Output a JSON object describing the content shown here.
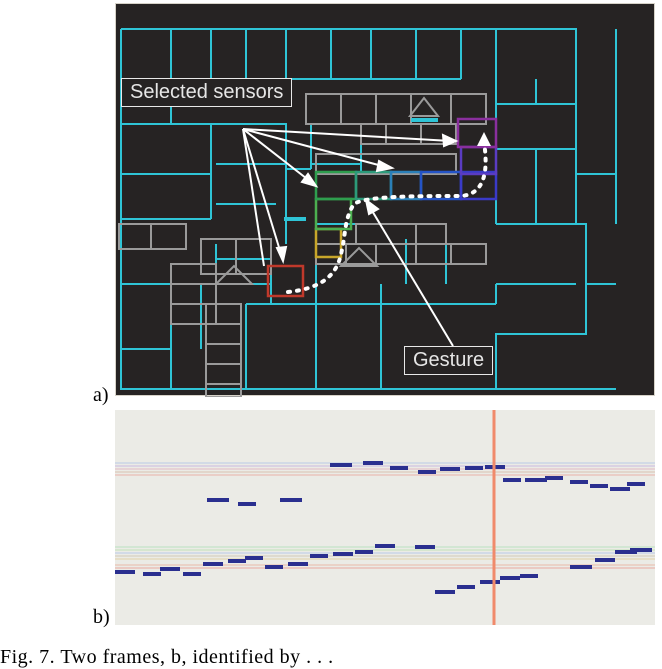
{
  "figure": {
    "panel_a_label": "a)",
    "panel_b_label": "b)",
    "callout_sensors": "Selected sensors",
    "callout_gesture": "Gesture",
    "caption": "Fig. 7. Two frames, b, identified by . . ."
  },
  "colors": {
    "floor_bg": "#262323",
    "wall": "#2fc4d6",
    "inactive_sensor": "#9a9a9a",
    "gesture_path": "#ffffff",
    "timeline_bg": "#ebebe6",
    "event": "#2a2f8f",
    "cursor": "#f08a6b"
  }
}
